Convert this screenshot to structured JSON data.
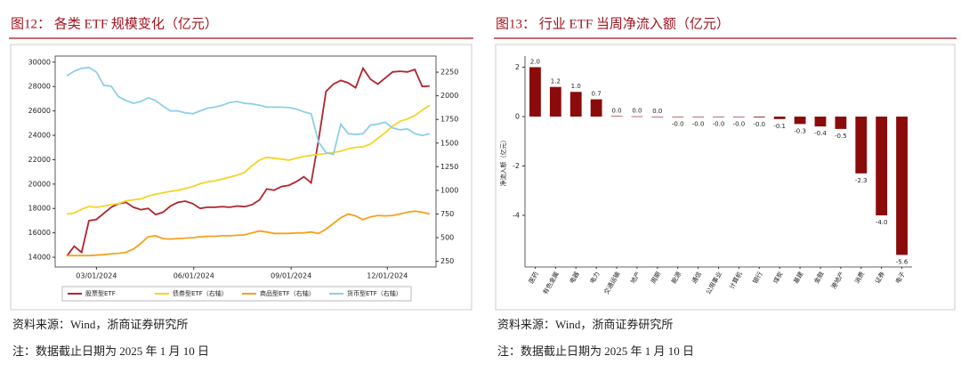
{
  "chart_data": [
    {
      "type": "line",
      "title": "图12：  各类 ETF 规模变化（亿元）",
      "source": "资料来源：Wind，浙商证券研究所",
      "note": "注：数据截止日期为 2025 年 1 月 10 日",
      "x": [
        "2024-02-02",
        "2024-02-09",
        "2024-02-16",
        "2024-02-23",
        "2024-03-01",
        "2024-03-08",
        "2024-03-15",
        "2024-03-22",
        "2024-03-29",
        "2024-04-05",
        "2024-04-12",
        "2024-04-19",
        "2024-04-26",
        "2024-05-03",
        "2024-05-10",
        "2024-05-17",
        "2024-05-24",
        "2024-05-31",
        "2024-06-07",
        "2024-06-14",
        "2024-06-21",
        "2024-06-28",
        "2024-07-05",
        "2024-07-12",
        "2024-07-19",
        "2024-07-26",
        "2024-08-02",
        "2024-08-09",
        "2024-08-16",
        "2024-08-23",
        "2024-08-30",
        "2024-09-06",
        "2024-09-13",
        "2024-09-20",
        "2024-09-27",
        "2024-10-04",
        "2024-10-11",
        "2024-10-18",
        "2024-10-25",
        "2024-11-01",
        "2024-11-08",
        "2024-11-15",
        "2024-11-22",
        "2024-11-29",
        "2024-12-06",
        "2024-12-13",
        "2024-12-20",
        "2024-12-27",
        "2025-01-03",
        "2025-01-10"
      ],
      "xlim": [
        "2024-01-22",
        "2025-01-16"
      ],
      "xticks": [
        {
          "value": "2024-03-01",
          "label": "03/01/2024"
        },
        {
          "value": "2024-06-01",
          "label": "06/01/2024"
        },
        {
          "value": "2024-09-01",
          "label": "09/01/2024"
        },
        {
          "value": "2024-12-01",
          "label": "12/01/2024"
        }
      ],
      "ylim": [
        13200,
        30500
      ],
      "yticks": [
        14000,
        16000,
        18000,
        20000,
        22000,
        24000,
        26000,
        28000,
        30000
      ],
      "y2lim": [
        190,
        2420
      ],
      "y2ticks": [
        250,
        500,
        750,
        1000,
        1250,
        1500,
        1750,
        2000,
        2250
      ],
      "legend": "bottom",
      "series": [
        {
          "name": "股票型ETF",
          "color": "#b0252d",
          "values": [
            14100,
            14900,
            14400,
            17000,
            17100,
            17600,
            18100,
            18400,
            18500,
            18100,
            17900,
            18000,
            17500,
            17700,
            18200,
            18500,
            18600,
            18400,
            18000,
            18100,
            18100,
            18150,
            18100,
            18200,
            18150,
            18300,
            18700,
            19600,
            19500,
            19800,
            19900,
            20200,
            20600,
            20100,
            23600,
            27600,
            28200,
            28500,
            28300,
            27900,
            29500,
            28600,
            28200,
            28700,
            29200,
            29250,
            29200,
            29400,
            28000,
            28050
          ]
        },
        {
          "name": "债券型ETF（右轴）",
          "color": "#f5d423",
          "axis": "y2",
          "values": [
            750,
            760,
            800,
            830,
            820,
            835,
            850,
            860,
            890,
            900,
            910,
            940,
            960,
            975,
            990,
            1000,
            1020,
            1040,
            1070,
            1090,
            1100,
            1120,
            1140,
            1160,
            1190,
            1260,
            1320,
            1350,
            1340,
            1330,
            1320,
            1340,
            1360,
            1370,
            1380,
            1390,
            1400,
            1415,
            1440,
            1455,
            1460,
            1490,
            1550,
            1610,
            1680,
            1730,
            1755,
            1790,
            1850,
            1900
          ]
        },
        {
          "name": "商品型ETF（右轴）",
          "color": "#f5a21b",
          "axis": "y2",
          "values": [
            310,
            310,
            310,
            310,
            315,
            320,
            330,
            335,
            345,
            380,
            440,
            510,
            520,
            490,
            485,
            490,
            495,
            500,
            510,
            515,
            515,
            520,
            520,
            525,
            530,
            550,
            570,
            560,
            545,
            545,
            545,
            550,
            550,
            560,
            545,
            590,
            650,
            710,
            750,
            730,
            690,
            720,
            735,
            730,
            735,
            750,
            770,
            780,
            770,
            750
          ]
        },
        {
          "name": "货币型ETF（右轴）",
          "color": "#8ccfe8",
          "axis": "y2",
          "values": [
            2210,
            2260,
            2290,
            2300,
            2250,
            2110,
            2100,
            1990,
            1950,
            1920,
            1940,
            1980,
            1950,
            1890,
            1840,
            1840,
            1820,
            1810,
            1840,
            1870,
            1880,
            1900,
            1930,
            1940,
            1920,
            1915,
            1900,
            1880,
            1880,
            1880,
            1875,
            1860,
            1830,
            1810,
            1510,
            1400,
            1380,
            1700,
            1600,
            1590,
            1600,
            1690,
            1700,
            1720,
            1660,
            1640,
            1650,
            1600,
            1580,
            1600
          ]
        }
      ]
    },
    {
      "type": "bar",
      "title": "图13：  行业 ETF 当周净流入额（亿元）",
      "source": "资料来源：Wind，浙商证券研究所",
      "note": "注：数据截止日期为 2025 年 1 月 10 日",
      "y_label": "净流入额（亿元）",
      "categories": [
        "医药",
        "有色金属",
        "电器",
        "电力",
        "交通运输",
        "地产",
        "周期",
        "能源",
        "通信",
        "公用事业",
        "计算机",
        "银行",
        "煤炭",
        "基建",
        "金融",
        "港地产",
        "消费",
        "证券",
        "电子"
      ],
      "values": [
        2.0,
        1.2,
        1.0,
        0.7,
        0.02,
        0.01,
        0,
        -0.02,
        -0.02,
        -0.02,
        -0.02,
        -0.03,
        -0.1,
        -0.3,
        -0.4,
        -0.5,
        -2.3,
        -4.0,
        -5.6
      ],
      "value_labels": [
        "2.0",
        "1.2",
        "1.0",
        "0.7",
        "0.0",
        "0.0",
        "0.0",
        "-0.0",
        "-0.0",
        "-0.0",
        "-0.0",
        "-0.0",
        "-0.1",
        "-0.3",
        "-0.4",
        "-0.5",
        "-2.3",
        "-4.0",
        "-5.6"
      ],
      "color": "#8b0b0b",
      "ylim": [
        -6.09,
        2.45
      ],
      "yticks": [
        -4,
        -2,
        0,
        2
      ]
    }
  ]
}
